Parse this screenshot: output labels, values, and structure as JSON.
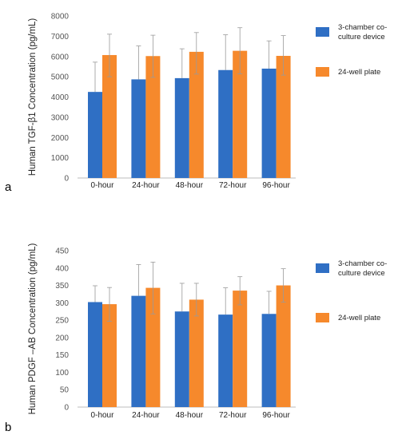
{
  "figure": {
    "colors": {
      "series_1": "#2f6fc4",
      "series_2": "#f6892c",
      "error_bar": "#9a9a9a",
      "axis": "#bcbcbc"
    }
  },
  "chart_data": [
    {
      "type": "bar",
      "panel_label": "a",
      "title": "",
      "xlabel": "",
      "ylabel": "Human TGF-β1 Concentration (pg/mL)",
      "ylim": [
        0,
        8000
      ],
      "yticks": [
        0,
        1000,
        2000,
        3000,
        4000,
        5000,
        6000,
        7000,
        8000
      ],
      "grid": false,
      "legend_position": "right",
      "categories": [
        "0-hour",
        "24-hour",
        "48-hour",
        "72-hour",
        "96-hour"
      ],
      "series": [
        {
          "name": "3-chamber co-culture device",
          "legend_lines": [
            "3-chamber co-",
            "culture device"
          ],
          "values": [
            4250,
            4870,
            4930,
            5330,
            5400
          ],
          "error_upper": [
            5720,
            6520,
            6380,
            7070,
            6770
          ]
        },
        {
          "name": "24-well plate",
          "legend_lines": [
            "24-well plate"
          ],
          "values": [
            6070,
            6020,
            6230,
            6280,
            6030
          ],
          "error_upper": [
            7100,
            7050,
            7180,
            7420,
            7030
          ],
          "error_lower": [
            5000,
            4970,
            5130,
            5140,
            5080
          ]
        }
      ]
    },
    {
      "type": "bar",
      "panel_label": "b",
      "title": "",
      "xlabel": "",
      "ylabel": "Human PDGF –AB Concentration (pg/mL)",
      "ylim": [
        0,
        450
      ],
      "yticks": [
        0,
        50,
        100,
        150,
        200,
        250,
        300,
        350,
        400,
        450
      ],
      "grid": false,
      "legend_position": "right",
      "categories": [
        "0-hour",
        "24-hour",
        "48-hour",
        "72-hour",
        "96-hour"
      ],
      "series": [
        {
          "name": "3-chamber co-culture device",
          "legend_lines": [
            "3-chamber co-",
            "culture device"
          ],
          "values": [
            302,
            320,
            275,
            266,
            268
          ],
          "error_upper": [
            349,
            410,
            356,
            343,
            333
          ]
        },
        {
          "name": "24-well plate",
          "legend_lines": [
            "24-well plate"
          ],
          "values": [
            296,
            343,
            309,
            335,
            350
          ],
          "error_upper": [
            344,
            417,
            356,
            375,
            398
          ],
          "error_lower": [
            247,
            268,
            262,
            294,
            302
          ]
        }
      ]
    }
  ]
}
